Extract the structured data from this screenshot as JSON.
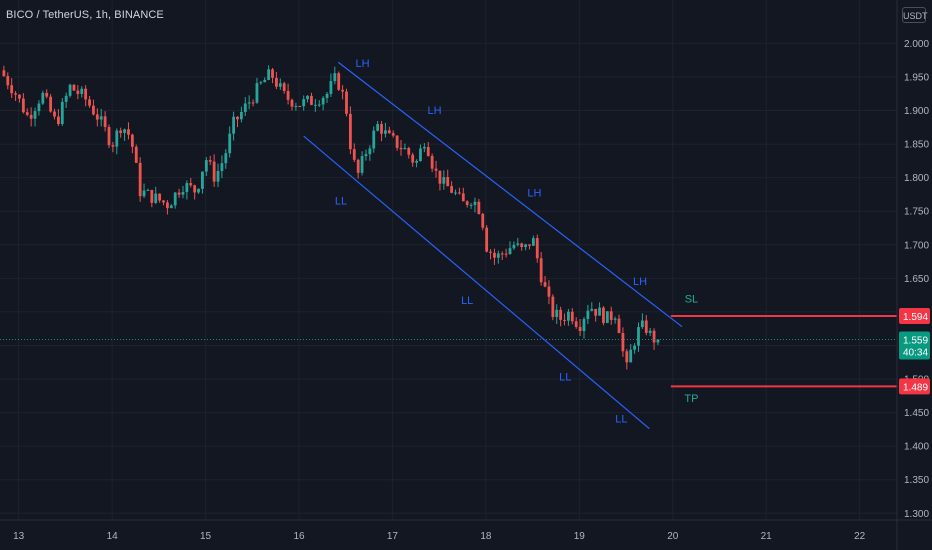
{
  "header": {
    "symbol_title": "BICO / TetherUS, 1h, BINANCE",
    "currency_label": "USDT"
  },
  "colors": {
    "background": "#131722",
    "up": "#26a69a",
    "down": "#ef5350",
    "channel_line": "#2962ff",
    "level_line": "#f23645",
    "last_price": "#089981",
    "annotation_blue": "#2962ff",
    "annotation_green": "#22ab94"
  },
  "chart_data": {
    "type": "candlestick",
    "title": "BICO / TetherUS, 1h, BINANCE",
    "x_ticks": [
      "13",
      "14",
      "15",
      "16",
      "17",
      "18",
      "19",
      "20",
      "21",
      "22"
    ],
    "y_ticks": [
      "2.000",
      "1.950",
      "1.900",
      "1.850",
      "1.800",
      "1.750",
      "1.700",
      "1.650",
      "1.600",
      "1.550",
      "1.500",
      "1.450",
      "1.400",
      "1.350",
      "1.300"
    ],
    "ylim": [
      1.29,
      2.02
    ],
    "xlim_days": [
      12.8,
      22.4
    ],
    "close_path": [
      [
        12.8,
        1.96
      ],
      [
        12.95,
        1.93
      ],
      [
        13.1,
        1.89
      ],
      [
        13.25,
        1.925
      ],
      [
        13.4,
        1.88
      ],
      [
        13.55,
        1.935
      ],
      [
        13.7,
        1.92
      ],
      [
        13.85,
        1.89
      ],
      [
        14.0,
        1.85
      ],
      [
        14.1,
        1.88
      ],
      [
        14.2,
        1.86
      ],
      [
        14.3,
        1.78
      ],
      [
        14.45,
        1.77
      ],
      [
        14.6,
        1.76
      ],
      [
        14.75,
        1.79
      ],
      [
        14.9,
        1.78
      ],
      [
        15.0,
        1.83
      ],
      [
        15.1,
        1.8
      ],
      [
        15.2,
        1.83
      ],
      [
        15.3,
        1.88
      ],
      [
        15.45,
        1.91
      ],
      [
        15.6,
        1.94
      ],
      [
        15.7,
        1.955
      ],
      [
        15.85,
        1.92
      ],
      [
        16.0,
        1.91
      ],
      [
        16.15,
        1.915
      ],
      [
        16.3,
        1.925
      ],
      [
        16.4,
        1.95
      ],
      [
        16.5,
        1.91
      ],
      [
        16.55,
        1.85
      ],
      [
        16.62,
        1.8
      ],
      [
        16.72,
        1.84
      ],
      [
        16.85,
        1.88
      ],
      [
        16.95,
        1.86
      ],
      [
        17.05,
        1.85
      ],
      [
        17.15,
        1.84
      ],
      [
        17.25,
        1.82
      ],
      [
        17.35,
        1.86
      ],
      [
        17.45,
        1.81
      ],
      [
        17.55,
        1.79
      ],
      [
        17.65,
        1.78
      ],
      [
        17.75,
        1.76
      ],
      [
        17.85,
        1.77
      ],
      [
        17.95,
        1.75
      ],
      [
        18.0,
        1.7
      ],
      [
        18.1,
        1.68
      ],
      [
        18.2,
        1.69
      ],
      [
        18.3,
        1.7
      ],
      [
        18.4,
        1.69
      ],
      [
        18.5,
        1.71
      ],
      [
        18.6,
        1.65
      ],
      [
        18.7,
        1.6
      ],
      [
        18.8,
        1.59
      ],
      [
        18.9,
        1.6
      ],
      [
        19.0,
        1.58
      ],
      [
        19.1,
        1.61
      ],
      [
        19.2,
        1.6
      ],
      [
        19.3,
        1.59
      ],
      [
        19.4,
        1.6
      ],
      [
        19.5,
        1.51
      ],
      [
        19.55,
        1.54
      ],
      [
        19.62,
        1.57
      ],
      [
        19.7,
        1.58
      ],
      [
        19.78,
        1.56
      ],
      [
        19.83,
        1.56
      ],
      [
        19.88,
        1.559
      ]
    ],
    "channel_upper": [
      [
        16.42,
        1.972
      ],
      [
        20.1,
        1.578
      ]
    ],
    "channel_lower": [
      [
        16.05,
        1.862
      ],
      [
        19.75,
        1.426
      ]
    ],
    "stop_loss": 1.594,
    "take_profit": 1.489,
    "last_price": 1.559,
    "countdown": "40:34",
    "level_line_start_day": 19.98,
    "annotations": [
      {
        "text": "LH",
        "day": 16.68,
        "price": 1.965,
        "color": "blue"
      },
      {
        "text": "LH",
        "day": 17.45,
        "price": 1.895,
        "color": "blue"
      },
      {
        "text": "LH",
        "day": 18.52,
        "price": 1.772,
        "color": "blue"
      },
      {
        "text": "LH",
        "day": 19.65,
        "price": 1.64,
        "color": "blue"
      },
      {
        "text": "LL",
        "day": 16.45,
        "price": 1.76,
        "color": "blue"
      },
      {
        "text": "LL",
        "day": 17.8,
        "price": 1.612,
        "color": "blue"
      },
      {
        "text": "LL",
        "day": 18.85,
        "price": 1.498,
        "color": "blue"
      },
      {
        "text": "LL",
        "day": 19.45,
        "price": 1.435,
        "color": "blue"
      },
      {
        "text": "SL",
        "day": 20.2,
        "price": 1.614,
        "color": "green"
      },
      {
        "text": "TP",
        "day": 20.2,
        "price": 1.466,
        "color": "green"
      }
    ]
  }
}
